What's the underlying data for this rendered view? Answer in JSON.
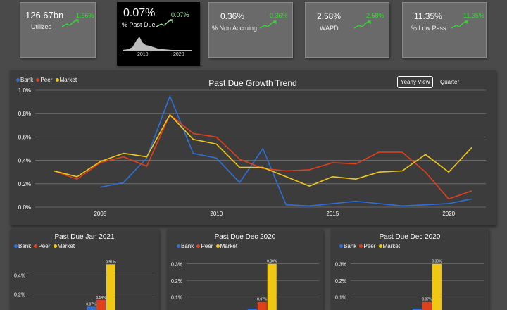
{
  "colors": {
    "bank": "#2f6fd6",
    "peer": "#e0401c",
    "market": "#f0c814",
    "positive": "#2ee02e",
    "grid": "#8a8a8a"
  },
  "kpis": [
    {
      "value": "126.67bn",
      "label": "Utilized",
      "change": "1.66%"
    },
    {
      "value": "0.07%",
      "label": "% Past Due",
      "change": "0.07%",
      "axis_start": "2010",
      "axis_end": "2020"
    },
    {
      "value": "0.36%",
      "label": "% Non Accruing",
      "change": "0.36%"
    },
    {
      "value": "2.58%",
      "label": "WAPD",
      "change": "2.58%"
    },
    {
      "value": "11.35%",
      "label": "% Low Pass",
      "change": "11.35%"
    }
  ],
  "main": {
    "legend": {
      "bank": "Bank",
      "peer": "Peer",
      "market": "Market"
    },
    "toggles": {
      "yearly": "Yearly View",
      "quarter": "Quarter"
    }
  },
  "chart_data": [
    {
      "type": "line",
      "title": "Past Due Growth Trend",
      "xlabel": "",
      "ylabel": "",
      "xlim": [
        2002.2,
        2021.6
      ],
      "ylim": [
        0,
        1.0
      ],
      "x_ticks": [
        2005,
        2010,
        2015,
        2020
      ],
      "y_ticks": [
        "0.0%",
        "0.2%",
        "0.4%",
        "0.6%",
        "0.8%",
        "1.0%"
      ],
      "grid": true,
      "legend_position": "top-left",
      "series": [
        {
          "name": "Bank",
          "x": [
            2005,
            2006,
            2007,
            2008,
            2009,
            2010,
            2011,
            2012,
            2013,
            2014,
            2015,
            2016,
            2017,
            2018,
            2019,
            2020,
            2021
          ],
          "values": [
            0.17,
            0.21,
            0.42,
            0.95,
            0.46,
            0.42,
            0.21,
            0.5,
            0.02,
            0.01,
            0.03,
            0.05,
            0.03,
            0.01,
            0.02,
            0.03,
            0.07
          ]
        },
        {
          "name": "Peer",
          "x": [
            2003,
            2004,
            2005,
            2006,
            2007,
            2008,
            2009,
            2010,
            2011,
            2012,
            2013,
            2014,
            2015,
            2016,
            2017,
            2018,
            2019,
            2020,
            2021
          ],
          "values": [
            0.31,
            0.24,
            0.38,
            0.43,
            0.35,
            0.79,
            0.63,
            0.6,
            0.41,
            0.33,
            0.31,
            0.32,
            0.38,
            0.37,
            0.47,
            0.47,
            0.3,
            0.07,
            0.14
          ]
        },
        {
          "name": "Market",
          "x": [
            2003,
            2004,
            2005,
            2006,
            2007,
            2008,
            2009,
            2010,
            2011,
            2012,
            2013,
            2014,
            2015,
            2016,
            2017,
            2018,
            2019,
            2020,
            2021
          ],
          "values": [
            0.31,
            0.26,
            0.39,
            0.46,
            0.43,
            0.79,
            0.58,
            0.54,
            0.34,
            0.34,
            0.26,
            0.18,
            0.26,
            0.24,
            0.3,
            0.31,
            0.45,
            0.3,
            0.51
          ]
        }
      ]
    },
    {
      "type": "bar",
      "title": "Past Due Jan 2021",
      "legend": [
        "Bank",
        "Peer",
        "Market"
      ],
      "series": [
        {
          "name": "Bank",
          "values": [
            0.07
          ]
        },
        {
          "name": "Peer",
          "values": [
            0.14
          ]
        },
        {
          "name": "Market",
          "values": [
            0.51
          ]
        }
      ],
      "data_labels": [
        "0.07%",
        "0.14%",
        "0.51%"
      ],
      "ylim": [
        0,
        0.6
      ],
      "y_ticks": [
        {
          "v": 0.2,
          "t": "0.2%"
        },
        {
          "v": 0.4,
          "t": "0.4%"
        }
      ]
    },
    {
      "type": "bar",
      "title": "Past Due Dec 2020",
      "legend": [
        "Bank",
        "Peer",
        "Market"
      ],
      "series": [
        {
          "name": "Bank",
          "values": [
            0.03
          ]
        },
        {
          "name": "Peer",
          "values": [
            0.07
          ]
        },
        {
          "name": "Market",
          "values": [
            0.3
          ]
        }
      ],
      "data_labels": [
        "",
        "0.07%",
        "0.30%"
      ],
      "ylim": [
        0,
        0.35
      ],
      "y_ticks": [
        {
          "v": 0.1,
          "t": "0.1%"
        },
        {
          "v": 0.2,
          "t": "0.2%"
        },
        {
          "v": 0.3,
          "t": "0.3%"
        }
      ]
    },
    {
      "type": "bar",
      "title": "Past Due Dec 2020",
      "legend": [
        "Bank",
        "Peer",
        "Market"
      ],
      "series": [
        {
          "name": "Bank",
          "values": [
            0.03
          ]
        },
        {
          "name": "Peer",
          "values": [
            0.07
          ]
        },
        {
          "name": "Market",
          "values": [
            0.3
          ]
        }
      ],
      "data_labels": [
        "",
        "0.07%",
        "0.30%"
      ],
      "ylim": [
        0,
        0.35
      ],
      "y_ticks": [
        {
          "v": 0.1,
          "t": "0.1%"
        },
        {
          "v": 0.2,
          "t": "0.2%"
        },
        {
          "v": 0.3,
          "t": "0.3%"
        }
      ]
    }
  ]
}
